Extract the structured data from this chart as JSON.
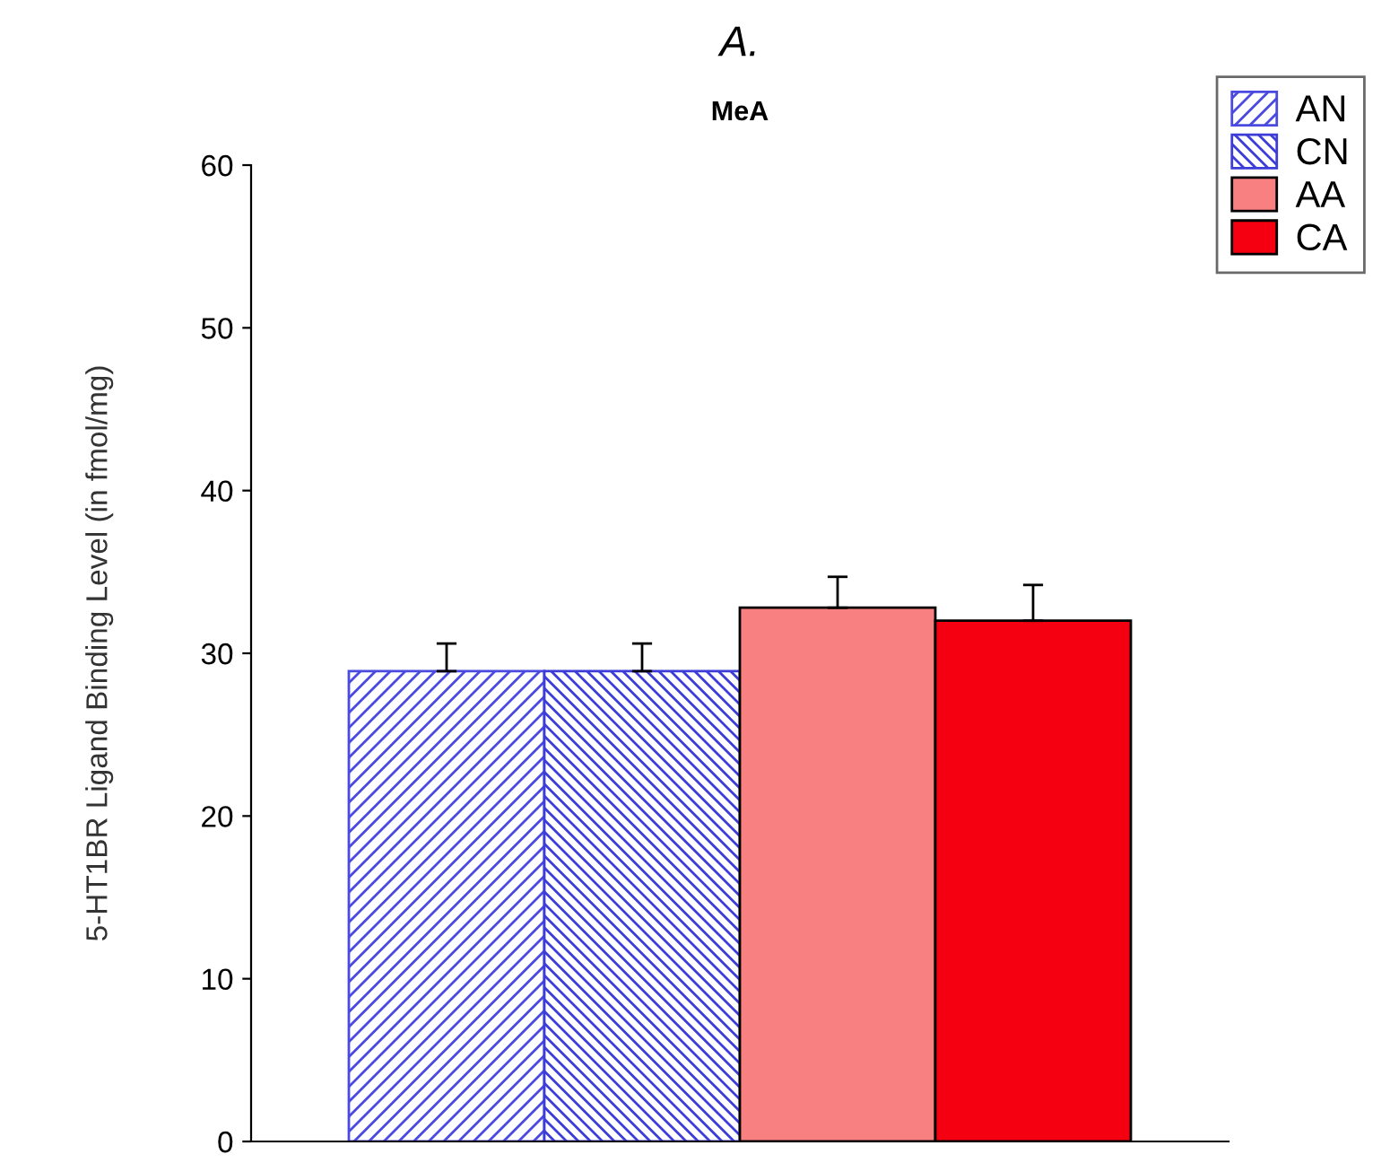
{
  "chart_data": {
    "type": "bar",
    "title": "A.",
    "subtitle": "MeA",
    "ylabel": "5-HT1BR Ligand Binding Level (in fmol/mg)",
    "categories": [
      null
    ],
    "series": [
      {
        "name": "AN",
        "color": "#4a4ae0",
        "values": [
          28.9
        ],
        "errors": [
          [
            28.9,
            30.6
          ]
        ]
      },
      {
        "name": "CN",
        "color": "#3c3cd8",
        "values": [
          28.9
        ],
        "errors": [
          [
            28.9,
            30.6
          ]
        ]
      },
      {
        "name": "AA",
        "color": "#f88080",
        "values": [
          32.8
        ],
        "errors": [
          [
            32.8,
            34.7
          ]
        ]
      },
      {
        "name": "CA",
        "color": "#f50010",
        "values": [
          32.0
        ],
        "errors": [
          [
            32.0,
            34.2
          ]
        ]
      }
    ],
    "ylim": [
      0,
      60
    ],
    "yticks": [
      0,
      10,
      20,
      30,
      40,
      50,
      60
    ],
    "grid": false,
    "legend": "top right"
  }
}
